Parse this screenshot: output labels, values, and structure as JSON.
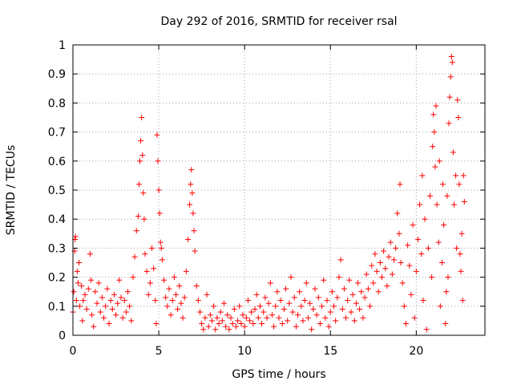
{
  "chart_data": {
    "type": "scatter",
    "title": "Day 292 of 2016, SRMTID for receiver rsal",
    "xlabel": "GPS time / hours",
    "ylabel": "SRMTID / TECUs",
    "xlim": [
      0,
      24
    ],
    "ylim": [
      0,
      1
    ],
    "xticks": [
      0,
      5,
      10,
      15,
      20
    ],
    "yticks": [
      0,
      0.1,
      0.2,
      0.3,
      0.4,
      0.5,
      0.6,
      0.7,
      0.8,
      0.9,
      1
    ],
    "ytick_labels": [
      "0",
      "0.1",
      "0.2",
      "0.3",
      "0.4",
      "0.5",
      "0.6",
      "0.7",
      "0.8",
      "0.9",
      "1"
    ],
    "grid": true,
    "marker": "plus",
    "color": "#ff0000",
    "series": [
      {
        "name": "SRMTID",
        "points": [
          [
            0.0,
            0.08
          ],
          [
            0.05,
            0.15
          ],
          [
            0.1,
            0.29
          ],
          [
            0.12,
            0.33
          ],
          [
            0.15,
            0.34
          ],
          [
            0.2,
            0.12
          ],
          [
            0.25,
            0.22
          ],
          [
            0.3,
            0.18
          ],
          [
            0.35,
            0.25
          ],
          [
            0.4,
            0.1
          ],
          [
            0.5,
            0.17
          ],
          [
            0.55,
            0.05
          ],
          [
            0.6,
            0.12
          ],
          [
            0.7,
            0.14
          ],
          [
            0.8,
            0.09
          ],
          [
            0.9,
            0.16
          ],
          [
            1.0,
            0.28
          ],
          [
            1.05,
            0.19
          ],
          [
            1.1,
            0.07
          ],
          [
            1.2,
            0.03
          ],
          [
            1.3,
            0.15
          ],
          [
            1.4,
            0.11
          ],
          [
            1.5,
            0.18
          ],
          [
            1.6,
            0.08
          ],
          [
            1.7,
            0.13
          ],
          [
            1.8,
            0.06
          ],
          [
            1.9,
            0.1
          ],
          [
            2.0,
            0.16
          ],
          [
            2.1,
            0.04
          ],
          [
            2.2,
            0.12
          ],
          [
            2.3,
            0.09
          ],
          [
            2.4,
            0.14
          ],
          [
            2.5,
            0.07
          ],
          [
            2.6,
            0.11
          ],
          [
            2.7,
            0.19
          ],
          [
            2.8,
            0.13
          ],
          [
            2.9,
            0.06
          ],
          [
            3.0,
            0.12
          ],
          [
            3.1,
            0.08
          ],
          [
            3.2,
            0.15
          ],
          [
            3.3,
            0.1
          ],
          [
            3.4,
            0.05
          ],
          [
            3.5,
            0.2
          ],
          [
            3.6,
            0.27
          ],
          [
            3.7,
            0.36
          ],
          [
            3.8,
            0.41
          ],
          [
            3.85,
            0.52
          ],
          [
            3.9,
            0.6
          ],
          [
            3.95,
            0.67
          ],
          [
            4.0,
            0.75
          ],
          [
            4.05,
            0.62
          ],
          [
            4.1,
            0.49
          ],
          [
            4.15,
            0.4
          ],
          [
            4.2,
            0.28
          ],
          [
            4.3,
            0.22
          ],
          [
            4.4,
            0.14
          ],
          [
            4.5,
            0.18
          ],
          [
            4.6,
            0.3
          ],
          [
            4.7,
            0.23
          ],
          [
            4.8,
            0.12
          ],
          [
            4.85,
            0.04
          ],
          [
            4.9,
            0.69
          ],
          [
            4.95,
            0.6
          ],
          [
            5.0,
            0.5
          ],
          [
            5.05,
            0.42
          ],
          [
            5.1,
            0.32
          ],
          [
            5.15,
            0.3
          ],
          [
            5.2,
            0.26
          ],
          [
            5.3,
            0.19
          ],
          [
            5.4,
            0.13
          ],
          [
            5.5,
            0.1
          ],
          [
            5.6,
            0.16
          ],
          [
            5.7,
            0.07
          ],
          [
            5.8,
            0.12
          ],
          [
            5.9,
            0.2
          ],
          [
            6.0,
            0.14
          ],
          [
            6.1,
            0.09
          ],
          [
            6.2,
            0.17
          ],
          [
            6.3,
            0.11
          ],
          [
            6.4,
            0.06
          ],
          [
            6.5,
            0.13
          ],
          [
            6.6,
            0.22
          ],
          [
            6.7,
            0.33
          ],
          [
            6.8,
            0.45
          ],
          [
            6.85,
            0.52
          ],
          [
            6.9,
            0.57
          ],
          [
            6.95,
            0.49
          ],
          [
            7.0,
            0.42
          ],
          [
            7.05,
            0.36
          ],
          [
            7.1,
            0.29
          ],
          [
            7.2,
            0.17
          ],
          [
            7.3,
            0.12
          ],
          [
            7.4,
            0.08
          ],
          [
            7.5,
            0.04
          ],
          [
            7.6,
            0.02
          ],
          [
            7.7,
            0.06
          ],
          [
            7.8,
            0.14
          ],
          [
            7.9,
            0.03
          ],
          [
            8.0,
            0.07
          ],
          [
            8.1,
            0.05
          ],
          [
            8.2,
            0.1
          ],
          [
            8.3,
            0.02
          ],
          [
            8.4,
            0.06
          ],
          [
            8.5,
            0.04
          ],
          [
            8.6,
            0.08
          ],
          [
            8.7,
            0.05
          ],
          [
            8.8,
            0.11
          ],
          [
            8.9,
            0.03
          ],
          [
            9.0,
            0.07
          ],
          [
            9.1,
            0.02
          ],
          [
            9.2,
            0.06
          ],
          [
            9.3,
            0.04
          ],
          [
            9.4,
            0.09
          ],
          [
            9.5,
            0.03
          ],
          [
            9.6,
            0.05
          ],
          [
            9.7,
            0.1
          ],
          [
            9.8,
            0.04
          ],
          [
            9.9,
            0.07
          ],
          [
            10.0,
            0.03
          ],
          [
            10.1,
            0.06
          ],
          [
            10.2,
            0.12
          ],
          [
            10.3,
            0.05
          ],
          [
            10.4,
            0.08
          ],
          [
            10.5,
            0.04
          ],
          [
            10.6,
            0.09
          ],
          [
            10.7,
            0.14
          ],
          [
            10.8,
            0.06
          ],
          [
            10.9,
            0.1
          ],
          [
            11.0,
            0.04
          ],
          [
            11.1,
            0.08
          ],
          [
            11.2,
            0.13
          ],
          [
            11.3,
            0.06
          ],
          [
            11.4,
            0.11
          ],
          [
            11.5,
            0.18
          ],
          [
            11.6,
            0.07
          ],
          [
            11.7,
            0.03
          ],
          [
            11.8,
            0.1
          ],
          [
            11.9,
            0.15
          ],
          [
            12.0,
            0.06
          ],
          [
            12.1,
            0.12
          ],
          [
            12.2,
            0.04
          ],
          [
            12.3,
            0.09
          ],
          [
            12.4,
            0.16
          ],
          [
            12.5,
            0.05
          ],
          [
            12.6,
            0.11
          ],
          [
            12.7,
            0.2
          ],
          [
            12.8,
            0.08
          ],
          [
            12.9,
            0.13
          ],
          [
            13.0,
            0.03
          ],
          [
            13.1,
            0.07
          ],
          [
            13.2,
            0.15
          ],
          [
            13.3,
            0.1
          ],
          [
            13.4,
            0.05
          ],
          [
            13.5,
            0.12
          ],
          [
            13.6,
            0.18
          ],
          [
            13.7,
            0.06
          ],
          [
            13.8,
            0.11
          ],
          [
            13.9,
            0.02
          ],
          [
            14.0,
            0.09
          ],
          [
            14.1,
            0.16
          ],
          [
            14.2,
            0.07
          ],
          [
            14.3,
            0.13
          ],
          [
            14.4,
            0.04
          ],
          [
            14.5,
            0.1
          ],
          [
            14.6,
            0.19
          ],
          [
            14.7,
            0.06
          ],
          [
            14.8,
            0.12
          ],
          [
            14.9,
            0.03
          ],
          [
            15.0,
            0.08
          ],
          [
            15.1,
            0.15
          ],
          [
            15.2,
            0.1
          ],
          [
            15.3,
            0.05
          ],
          [
            15.4,
            0.13
          ],
          [
            15.5,
            0.2
          ],
          [
            15.6,
            0.26
          ],
          [
            15.7,
            0.09
          ],
          [
            15.8,
            0.16
          ],
          [
            15.9,
            0.06
          ],
          [
            16.0,
            0.12
          ],
          [
            16.1,
            0.19
          ],
          [
            16.2,
            0.08
          ],
          [
            16.3,
            0.14
          ],
          [
            16.4,
            0.05
          ],
          [
            16.5,
            0.11
          ],
          [
            16.6,
            0.18
          ],
          [
            16.7,
            0.09
          ],
          [
            16.8,
            0.15
          ],
          [
            16.9,
            0.06
          ],
          [
            17.0,
            0.13
          ],
          [
            17.1,
            0.21
          ],
          [
            17.2,
            0.16
          ],
          [
            17.3,
            0.1
          ],
          [
            17.4,
            0.24
          ],
          [
            17.5,
            0.18
          ],
          [
            17.6,
            0.28
          ],
          [
            17.7,
            0.22
          ],
          [
            17.8,
            0.15
          ],
          [
            17.9,
            0.25
          ],
          [
            18.0,
            0.2
          ],
          [
            18.1,
            0.29
          ],
          [
            18.2,
            0.23
          ],
          [
            18.3,
            0.17
          ],
          [
            18.4,
            0.27
          ],
          [
            18.5,
            0.32
          ],
          [
            18.6,
            0.21
          ],
          [
            18.7,
            0.26
          ],
          [
            18.8,
            0.3
          ],
          [
            18.9,
            0.42
          ],
          [
            19.0,
            0.35
          ],
          [
            19.05,
            0.52
          ],
          [
            19.1,
            0.25
          ],
          [
            19.2,
            0.18
          ],
          [
            19.3,
            0.1
          ],
          [
            19.4,
            0.04
          ],
          [
            19.5,
            0.31
          ],
          [
            19.6,
            0.24
          ],
          [
            19.7,
            0.14
          ],
          [
            19.8,
            0.38
          ],
          [
            19.9,
            0.06
          ],
          [
            20.0,
            0.22
          ],
          [
            20.1,
            0.33
          ],
          [
            20.2,
            0.45
          ],
          [
            20.3,
            0.28
          ],
          [
            20.35,
            0.55
          ],
          [
            20.4,
            0.12
          ],
          [
            20.5,
            0.4
          ],
          [
            20.6,
            0.02
          ],
          [
            20.7,
            0.3
          ],
          [
            20.8,
            0.48
          ],
          [
            20.9,
            0.2
          ],
          [
            20.95,
            0.65
          ],
          [
            21.0,
            0.76
          ],
          [
            21.05,
            0.7
          ],
          [
            21.1,
            0.58
          ],
          [
            21.15,
            0.79
          ],
          [
            21.2,
            0.45
          ],
          [
            21.3,
            0.32
          ],
          [
            21.35,
            0.6
          ],
          [
            21.4,
            0.1
          ],
          [
            21.5,
            0.25
          ],
          [
            21.55,
            0.52
          ],
          [
            21.6,
            0.38
          ],
          [
            21.7,
            0.04
          ],
          [
            21.75,
            0.15
          ],
          [
            21.8,
            0.48
          ],
          [
            21.85,
            0.2
          ],
          [
            21.9,
            0.73
          ],
          [
            21.95,
            0.82
          ],
          [
            22.0,
            0.89
          ],
          [
            22.05,
            0.96
          ],
          [
            22.1,
            0.94
          ],
          [
            22.15,
            0.63
          ],
          [
            22.2,
            0.45
          ],
          [
            22.3,
            0.55
          ],
          [
            22.35,
            0.3
          ],
          [
            22.4,
            0.81
          ],
          [
            22.45,
            0.75
          ],
          [
            22.5,
            0.52
          ],
          [
            22.55,
            0.28
          ],
          [
            22.6,
            0.22
          ],
          [
            22.65,
            0.35
          ],
          [
            22.7,
            0.12
          ],
          [
            22.75,
            0.55
          ],
          [
            22.8,
            0.46
          ]
        ]
      }
    ]
  }
}
